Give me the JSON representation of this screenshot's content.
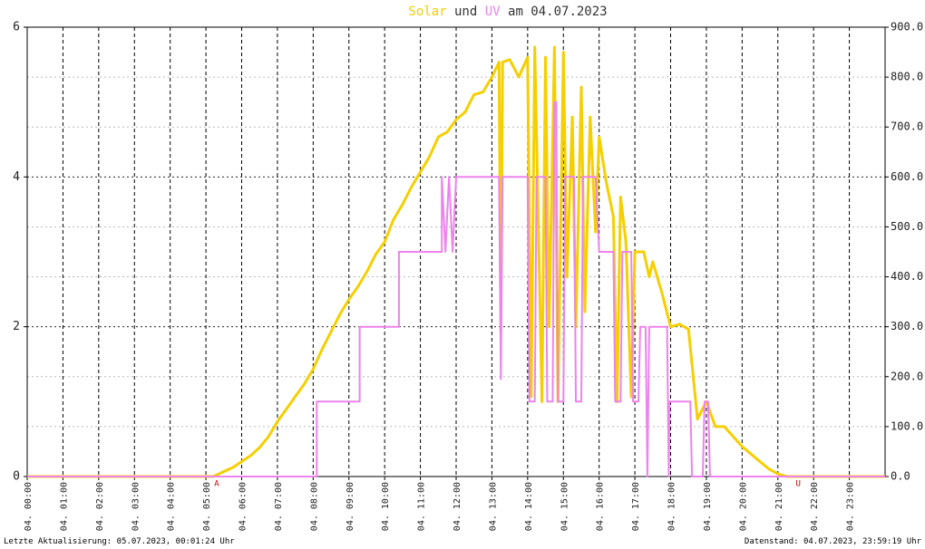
{
  "chart_data": {
    "type": "line",
    "title": [
      "und",
      "am 04.07.2023"
    ],
    "series": [
      {
        "name": "Solar",
        "color": "#f5cf00",
        "axis": "y2",
        "x": [
          0,
          5.2,
          5.3,
          5.5,
          5.75,
          6,
          6.25,
          6.5,
          6.75,
          7,
          7.25,
          7.5,
          7.75,
          8,
          8.25,
          8.5,
          8.75,
          9,
          9.25,
          9.5,
          9.75,
          10,
          10.25,
          10.5,
          10.75,
          11,
          11.25,
          11.5,
          11.75,
          12,
          12.25,
          12.5,
          12.75,
          13,
          13.2,
          13.25,
          13.3,
          13.5,
          13.75,
          14,
          14.1,
          14.2,
          14.4,
          14.5,
          14.6,
          14.75,
          14.85,
          15,
          15.1,
          15.25,
          15.35,
          15.5,
          15.6,
          15.75,
          15.9,
          16,
          16.2,
          16.4,
          16.5,
          16.6,
          16.75,
          16.9,
          17,
          17.25,
          17.4,
          17.5,
          17.75,
          18,
          18.25,
          18.5,
          18.75,
          19,
          19.25,
          19.5,
          19.75,
          20,
          20.25,
          20.5,
          20.75,
          21,
          21.25,
          24
        ],
        "values": [
          0,
          0,
          3,
          10,
          18,
          30,
          42,
          58,
          80,
          110,
          135,
          160,
          185,
          215,
          255,
          290,
          325,
          355,
          380,
          410,
          445,
          470,
          515,
          545,
          580,
          610,
          640,
          680,
          690,
          715,
          730,
          765,
          770,
          800,
          830,
          290,
          830,
          835,
          800,
          840,
          160,
          860,
          150,
          840,
          300,
          860,
          150,
          850,
          400,
          720,
          300,
          780,
          330,
          720,
          490,
          680,
          590,
          520,
          150,
          560,
          470,
          160,
          450,
          450,
          400,
          430,
          370,
          300,
          305,
          295,
          115,
          150,
          100,
          100,
          80,
          60,
          45,
          30,
          15,
          5,
          0,
          0
        ]
      },
      {
        "name": "UV",
        "color": "#ee82ee",
        "axis": "y",
        "x": [
          0,
          8.1,
          8.1,
          9.3,
          9.3,
          10.4,
          10.4,
          11.6,
          11.6,
          11.7,
          11.8,
          11.9,
          12,
          13.2,
          13.25,
          13.3,
          14,
          14.05,
          14.2,
          14.25,
          14.5,
          14.55,
          14.7,
          14.75,
          14.8,
          14.85,
          15,
          15.05,
          15.3,
          15.35,
          15.5,
          15.55,
          15.9,
          16,
          16.4,
          16.45,
          16.6,
          16.65,
          16.9,
          16.95,
          17.1,
          17.15,
          17.3,
          17.35,
          17.4,
          17.9,
          17.95,
          17.97,
          18.55,
          18.6,
          18.9,
          18.95,
          19.05,
          19.1,
          24
        ],
        "values": [
          0,
          0,
          1,
          1,
          2,
          2,
          3,
          3,
          4,
          3,
          4,
          3,
          4,
          4,
          1.3,
          4,
          4,
          1,
          1,
          4,
          4,
          1,
          1,
          5,
          5,
          1,
          1,
          4,
          4,
          1,
          1,
          4,
          4,
          3,
          3,
          1,
          1,
          3,
          3,
          1,
          1,
          2,
          2,
          0,
          2,
          2,
          0,
          1,
          1,
          0,
          0,
          1,
          1,
          0,
          0
        ]
      }
    ],
    "xlim": [
      0,
      24
    ],
    "xticks": [
      {
        "value": 0,
        "label": "04. 00:00"
      },
      {
        "value": 1,
        "label": "04. 01:00"
      },
      {
        "value": 2,
        "label": "04. 02:00"
      },
      {
        "value": 3,
        "label": "04. 03:00"
      },
      {
        "value": 4,
        "label": "04. 04:00"
      },
      {
        "value": 5,
        "label": "04. 05:00"
      },
      {
        "value": 6,
        "label": "04. 06:00"
      },
      {
        "value": 7,
        "label": "04. 07:00"
      },
      {
        "value": 8,
        "label": "04. 08:00"
      },
      {
        "value": 9,
        "label": "04. 09:00"
      },
      {
        "value": 10,
        "label": "04. 10:00"
      },
      {
        "value": 11,
        "label": "04. 11:00"
      },
      {
        "value": 12,
        "label": "04. 12:00"
      },
      {
        "value": 13,
        "label": "04. 13:00"
      },
      {
        "value": 14,
        "label": "04. 14:00"
      },
      {
        "value": 15,
        "label": "04. 15:00"
      },
      {
        "value": 16,
        "label": "04. 16:00"
      },
      {
        "value": 17,
        "label": "04. 17:00"
      },
      {
        "value": 18,
        "label": "04. 18:00"
      },
      {
        "value": 19,
        "label": "04. 19:00"
      },
      {
        "value": 20,
        "label": "04. 20:00"
      },
      {
        "value": 21,
        "label": "04. 21:00"
      },
      {
        "value": 22,
        "label": "04. 22:00"
      },
      {
        "value": 23,
        "label": "04. 23:00"
      }
    ],
    "ylim": [
      0,
      6
    ],
    "yticks": [
      0,
      2,
      4,
      6
    ],
    "y2lim": [
      0,
      900
    ],
    "y2ticks": [
      {
        "value": 0,
        "label": "0.0"
      },
      {
        "value": 100,
        "label": "100.0"
      },
      {
        "value": 200,
        "label": "200.0"
      },
      {
        "value": 300,
        "label": "300.0"
      },
      {
        "value": 400,
        "label": "400.0"
      },
      {
        "value": 500,
        "label": "500.0"
      },
      {
        "value": 600,
        "label": "600.0"
      },
      {
        "value": 700,
        "label": "700.0"
      },
      {
        "value": 800,
        "label": "800.0"
      },
      {
        "value": 900,
        "label": "900.0"
      }
    ],
    "grid": true,
    "annotations": [
      {
        "x": 5.3,
        "text": "A",
        "color": "#cc0000"
      },
      {
        "x": 21.57,
        "text": "U",
        "color": "#cc0000"
      }
    ],
    "footer_left": "Letzte Aktualisierung: 05.07.2023, 00:01:24 Uhr",
    "footer_right": "Datenstand: 04.07.2023, 23:59:19 Uhr"
  }
}
